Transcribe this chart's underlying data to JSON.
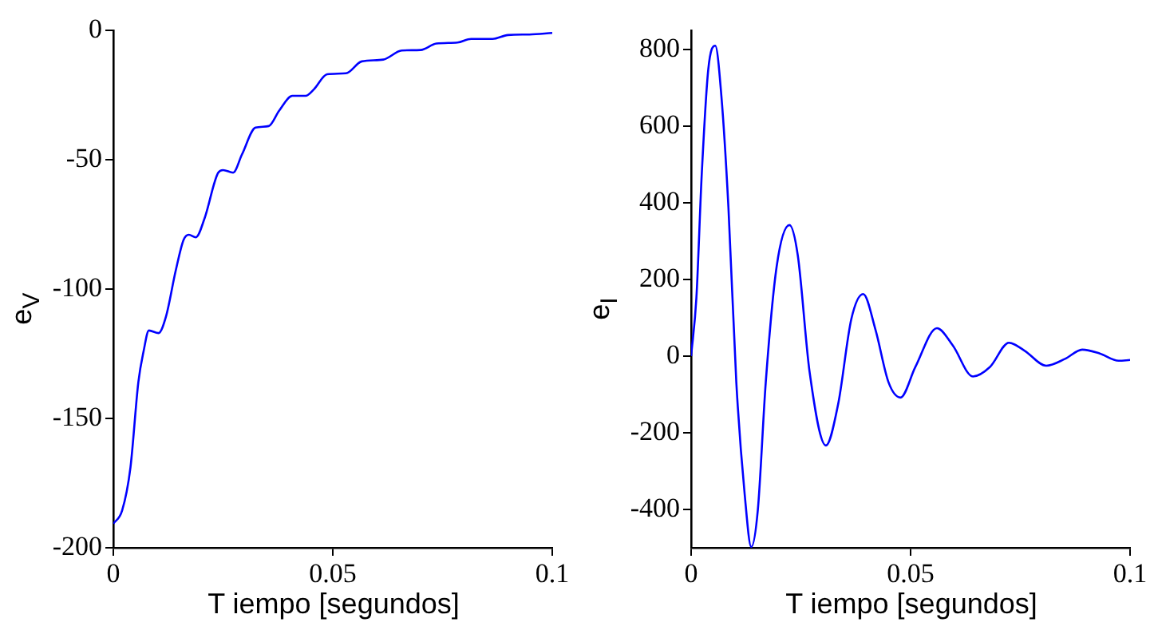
{
  "chart_data": [
    {
      "type": "line",
      "xlabel": "T iempo [segundos]",
      "ylabel": "e$_{V}$",
      "xlim": [
        0,
        0.1
      ],
      "xticks": [
        0,
        0.05,
        0.1
      ],
      "ylim": [
        -200,
        0
      ],
      "yticks": [
        -200,
        -150,
        -100,
        -50,
        0
      ],
      "x": [
        0,
        0.002,
        0.0039,
        0.0057,
        0.0069,
        0.0081,
        0.0103,
        0.012,
        0.0142,
        0.016,
        0.0172,
        0.0188,
        0.0208,
        0.0239,
        0.025,
        0.0273,
        0.0293,
        0.0324,
        0.0354,
        0.0378,
        0.0408,
        0.0438,
        0.0457,
        0.0487,
        0.053,
        0.0566,
        0.0615,
        0.0657,
        0.07,
        0.0736,
        0.0784,
        0.0815,
        0.0864,
        0.0899,
        0.0948,
        0.1
      ],
      "series": [
        {
          "color": "#0000ff",
          "values": [
            -190.7,
            -185.6,
            -169,
            -136,
            -124,
            -116,
            -117,
            -110.6,
            -93,
            -81,
            -79,
            -80,
            -72.6,
            -55,
            -54,
            -55,
            -48,
            -37.6,
            -37,
            -31,
            -25.3,
            -25.3,
            -22.8,
            -17,
            -16.6,
            -12,
            -11.3,
            -7.8,
            -7.6,
            -5.1,
            -4.7,
            -3.3,
            -3.3,
            -1.8,
            -1.6,
            -1
          ]
        }
      ]
    },
    {
      "type": "line",
      "xlabel": "T iempo [segundos]",
      "ylabel": "e$_{I}$",
      "xlim": [
        0,
        0.1
      ],
      "xticks": [
        0,
        0.05,
        0.1
      ],
      "ylim": [
        -500,
        850
      ],
      "yticks": [
        -400,
        -200,
        0,
        200,
        400,
        600,
        800
      ],
      "x": [
        0,
        0.0012,
        0.0024,
        0.0039,
        0.0055,
        0.0069,
        0.0085,
        0.0103,
        0.0122,
        0.0137,
        0.0152,
        0.017,
        0.0195,
        0.0224,
        0.0243,
        0.027,
        0.0307,
        0.0335,
        0.0365,
        0.0392,
        0.042,
        0.045,
        0.0477,
        0.0511,
        0.056,
        0.0596,
        0.0642,
        0.0681,
        0.0724,
        0.076,
        0.0809,
        0.0852,
        0.0891,
        0.0931,
        0.0974,
        0.1
      ],
      "series": [
        {
          "color": "#0000ff",
          "values": [
            0,
            152,
            470,
            747,
            810,
            678,
            388,
            -69,
            -360,
            -498,
            -401,
            -69,
            235,
            342,
            263,
            -42,
            -233,
            -125,
            97,
            162,
            69,
            -69,
            -108,
            -28,
            73,
            28,
            -53,
            -28,
            35,
            14,
            -25,
            -7,
            17,
            7,
            -12,
            -10
          ]
        }
      ]
    }
  ]
}
